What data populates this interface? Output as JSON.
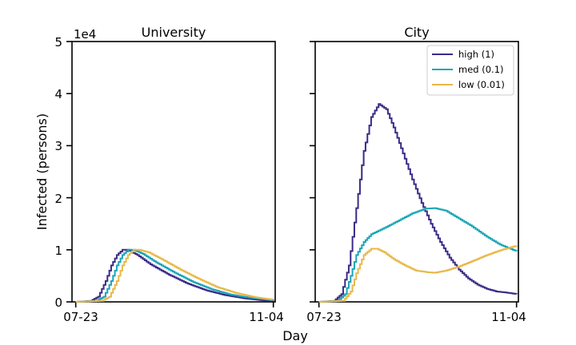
{
  "chart_data": [
    {
      "type": "line",
      "title": "University",
      "ylabel": "Infected (persons)",
      "y_multiplier_label": "1e4",
      "ylim": [
        0,
        5
      ],
      "y_ticks": [
        "0",
        "1",
        "2",
        "3",
        "4",
        "5"
      ],
      "x_ticks": [
        "07-23",
        "11-04"
      ],
      "x_range_days": [
        -2,
        107
      ],
      "series": [
        {
          "name": "high (1)",
          "color": "#3b2a86",
          "points": [
            [
              0,
              0
            ],
            [
              8,
              0.02
            ],
            [
              12,
              0.1
            ],
            [
              16,
              0.4
            ],
            [
              19,
              0.7
            ],
            [
              22,
              0.9
            ],
            [
              25,
              1.0
            ],
            [
              28,
              1.0
            ],
            [
              33,
              0.9
            ],
            [
              40,
              0.72
            ],
            [
              50,
              0.52
            ],
            [
              60,
              0.35
            ],
            [
              70,
              0.22
            ],
            [
              80,
              0.13
            ],
            [
              90,
              0.07
            ],
            [
              100,
              0.03
            ],
            [
              106,
              0.02
            ]
          ]
        },
        {
          "name": "med (0.1)",
          "color": "#1aa6b7",
          "points": [
            [
              0,
              0
            ],
            [
              11,
              0.02
            ],
            [
              15,
              0.1
            ],
            [
              19,
              0.4
            ],
            [
              22,
              0.7
            ],
            [
              25,
              0.9
            ],
            [
              28,
              1.0
            ],
            [
              31,
              1.0
            ],
            [
              36,
              0.92
            ],
            [
              43,
              0.76
            ],
            [
              53,
              0.56
            ],
            [
              63,
              0.38
            ],
            [
              73,
              0.24
            ],
            [
              83,
              0.14
            ],
            [
              93,
              0.08
            ],
            [
              106,
              0.03
            ]
          ]
        },
        {
          "name": "low (0.01)",
          "color": "#e8b84a",
          "points": [
            [
              0,
              0
            ],
            [
              14,
              0.02
            ],
            [
              18,
              0.1
            ],
            [
              22,
              0.4
            ],
            [
              25,
              0.7
            ],
            [
              28,
              0.9
            ],
            [
              31,
              1.0
            ],
            [
              34,
              1.0
            ],
            [
              39,
              0.95
            ],
            [
              46,
              0.82
            ],
            [
              56,
              0.62
            ],
            [
              66,
              0.44
            ],
            [
              76,
              0.28
            ],
            [
              86,
              0.17
            ],
            [
              96,
              0.09
            ],
            [
              106,
              0.04
            ]
          ]
        }
      ]
    },
    {
      "type": "line",
      "title": "City",
      "ylim": [
        0,
        5
      ],
      "x_ticks": [
        "07-23",
        "11-04"
      ],
      "x_range_days": [
        -2,
        107
      ],
      "legend": "top-right",
      "series": [
        {
          "name": "high (1)",
          "color": "#3b2a86",
          "points": [
            [
              0,
              0
            ],
            [
              8,
              0.02
            ],
            [
              12,
              0.15
            ],
            [
              16,
              0.7
            ],
            [
              20,
              1.8
            ],
            [
              24,
              2.9
            ],
            [
              28,
              3.55
            ],
            [
              32,
              3.8
            ],
            [
              36,
              3.7
            ],
            [
              40,
              3.35
            ],
            [
              45,
              2.85
            ],
            [
              50,
              2.35
            ],
            [
              55,
              1.9
            ],
            [
              60,
              1.5
            ],
            [
              65,
              1.15
            ],
            [
              70,
              0.85
            ],
            [
              75,
              0.62
            ],
            [
              80,
              0.45
            ],
            [
              85,
              0.33
            ],
            [
              90,
              0.25
            ],
            [
              95,
              0.2
            ],
            [
              100,
              0.18
            ],
            [
              106,
              0.15
            ]
          ]
        },
        {
          "name": "med (0.1)",
          "color": "#1aa6b7",
          "points": [
            [
              0,
              0
            ],
            [
              10,
              0.02
            ],
            [
              14,
              0.15
            ],
            [
              17,
              0.5
            ],
            [
              20,
              0.9
            ],
            [
              24,
              1.15
            ],
            [
              28,
              1.3
            ],
            [
              35,
              1.42
            ],
            [
              42,
              1.55
            ],
            [
              50,
              1.7
            ],
            [
              57,
              1.79
            ],
            [
              62,
              1.8
            ],
            [
              68,
              1.75
            ],
            [
              75,
              1.6
            ],
            [
              82,
              1.45
            ],
            [
              90,
              1.25
            ],
            [
              97,
              1.1
            ],
            [
              106,
              0.97
            ]
          ]
        },
        {
          "name": "low (0.01)",
          "color": "#e8b84a",
          "points": [
            [
              0,
              0
            ],
            [
              13,
              0.02
            ],
            [
              17,
              0.2
            ],
            [
              20,
              0.55
            ],
            [
              24,
              0.9
            ],
            [
              28,
              1.02
            ],
            [
              31,
              1.02
            ],
            [
              35,
              0.95
            ],
            [
              40,
              0.82
            ],
            [
              46,
              0.7
            ],
            [
              52,
              0.6
            ],
            [
              58,
              0.57
            ],
            [
              62,
              0.56
            ],
            [
              68,
              0.6
            ],
            [
              75,
              0.68
            ],
            [
              82,
              0.78
            ],
            [
              90,
              0.9
            ],
            [
              98,
              1.0
            ],
            [
              106,
              1.08
            ]
          ]
        }
      ]
    }
  ],
  "shared": {
    "xlabel": "Day",
    "legend_entries": [
      "high (1)",
      "med (0.1)",
      "low (0.01)"
    ]
  }
}
